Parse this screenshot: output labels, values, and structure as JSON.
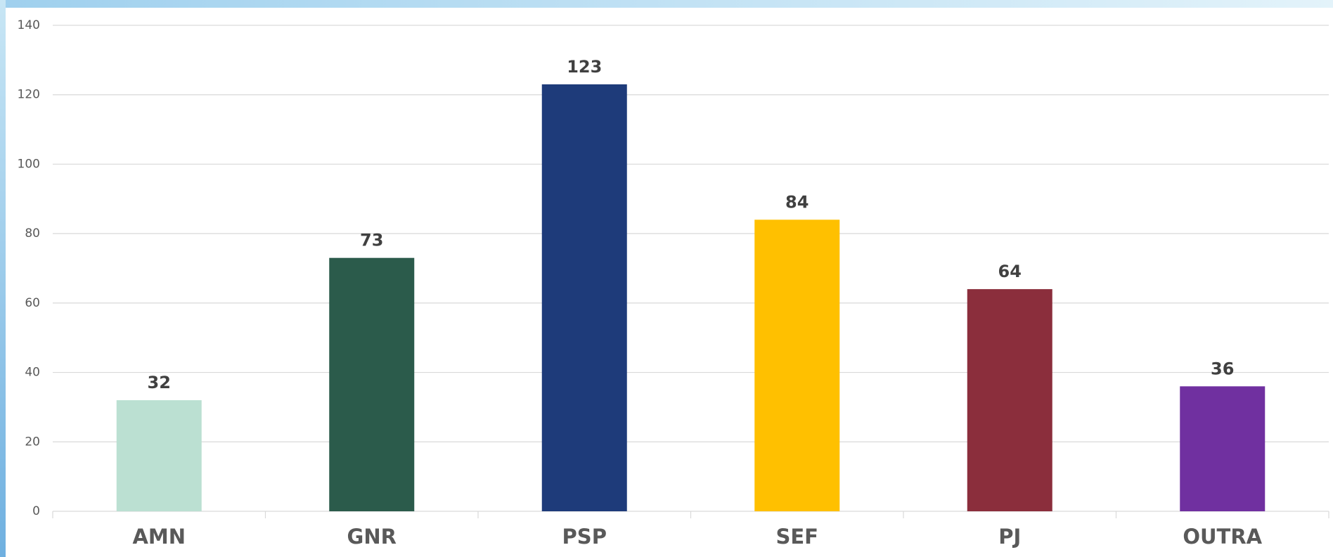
{
  "chart_data": {
    "type": "bar",
    "categories": [
      "AMN",
      "GNR",
      "PSP",
      "SEF",
      "PJ",
      "OUTRA"
    ],
    "values": [
      32,
      73,
      123,
      84,
      64,
      36
    ],
    "colors": [
      "#bbe0d2",
      "#2b5b4b",
      "#1e3b7a",
      "#ffc000",
      "#8b2e3c",
      "#7030a0"
    ],
    "ylim": [
      0,
      140
    ],
    "yticks": [
      0,
      20,
      40,
      60,
      80,
      100,
      120,
      140
    ],
    "grid": true
  }
}
